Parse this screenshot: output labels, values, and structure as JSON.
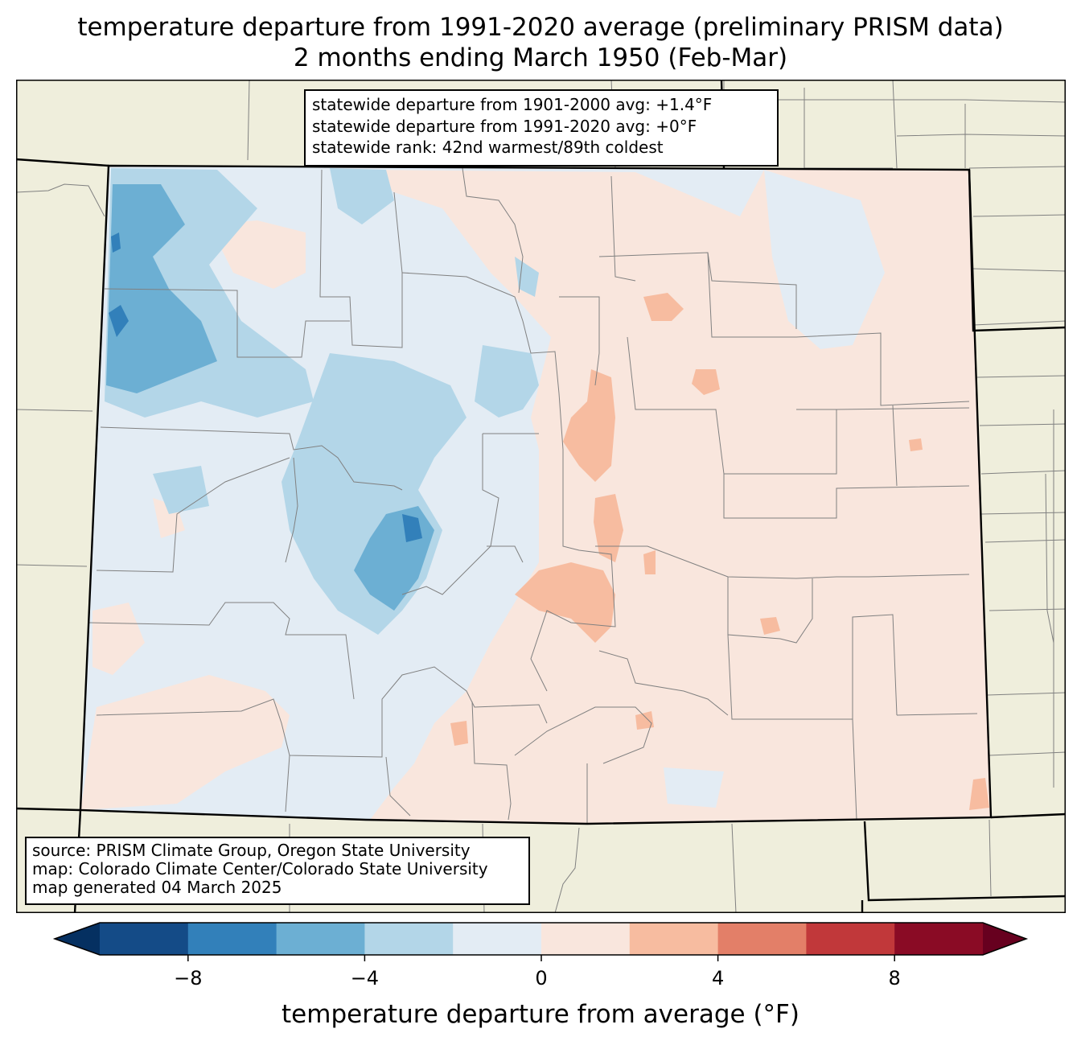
{
  "title": {
    "line1": "temperature departure from 1991-2020 average (preliminary PRISM data)",
    "line2": "2 months ending March 1950 (Feb-Mar)"
  },
  "stats": {
    "line1": "statewide departure from 1901-2000 avg: +1.4°F",
    "line2": "statewide departure from 1991-2020 avg: +0°F",
    "line3": "statewide rank: 42nd warmest/89th coldest"
  },
  "credits": {
    "line1": "source: PRISM Climate Group, Oregon State University",
    "line2": "map: Colorado Climate Center/Colorado State University",
    "line3": "map generated 04 March 2025"
  },
  "colorbar": {
    "label": "temperature departure from average (°F)",
    "min": -10,
    "max": 10,
    "step": 2,
    "ticks": [
      "−8",
      "−4",
      "0",
      "4",
      "8"
    ],
    "tick_values": [
      -8,
      -4,
      0,
      4,
      8
    ],
    "colors": [
      "#053061",
      "#144b87",
      "#3280ba",
      "#6cafd3",
      "#b3d6e8",
      "#e3ecf4",
      "#f9e6dd",
      "#f7bca0",
      "#e37f68",
      "#c1383a",
      "#8a0b25",
      "#67001f"
    ]
  },
  "map_colors": {
    "land_outside": "#efeedc",
    "state_border": "#000000",
    "county_line": "#808080"
  }
}
